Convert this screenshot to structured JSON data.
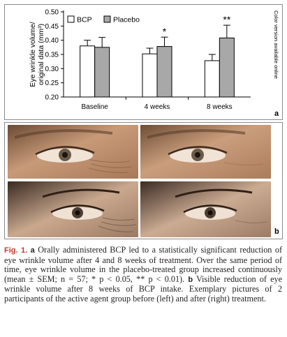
{
  "chart_data": {
    "type": "bar",
    "ylabel": "Eye wrinkle volume/ original data (mm³)",
    "ylim": [
      0.2,
      0.5
    ],
    "yticks": [
      "0.20",
      "0.25",
      "0.30",
      "0.35",
      "0.40",
      "0.45",
      "0.50"
    ],
    "grid": false,
    "legend": "top-left",
    "categories": [
      "Baseline",
      "4 weeks",
      "8 weeks"
    ],
    "series": [
      {
        "name": "BCP",
        "color": "#ffffff",
        "values": [
          0.38,
          0.352,
          0.328
        ],
        "errors": [
          0.02,
          0.02,
          0.022
        ]
      },
      {
        "name": "Placebo",
        "color": "#a8a8a8",
        "values": [
          0.375,
          0.378,
          0.408
        ],
        "errors": [
          0.035,
          0.033,
          0.045
        ]
      }
    ],
    "annotations": [
      "",
      "*",
      "**"
    ]
  },
  "side_note": "Color version available online",
  "panel_labels": {
    "a": "a",
    "b": "b"
  },
  "photos": {
    "top_left": "eye-photo-before",
    "top_right": "eye-photo-after",
    "bottom_left": "eye-photo-before",
    "bottom_right": "eye-photo-after"
  },
  "caption": {
    "fig_label": "Fig. 1.",
    "a_label": "a",
    "a_text": " Orally administered BCP led to a statistically significant reduction of eye wrinkle volume after 4 and 8 weeks of treatment. Over the same period of time, eye wrinkle volume in the placebo-treated group increased continuously (mean ± SEM; n = 57; * p < 0.05, ** p < 0.01). ",
    "b_label": "b",
    "b_text": " Visible reduction of eye wrinkle volume after 8 weeks of BCP intake. Exemplary pictures of 2 participants of the active agent group before (left) and after (right) treatment."
  }
}
